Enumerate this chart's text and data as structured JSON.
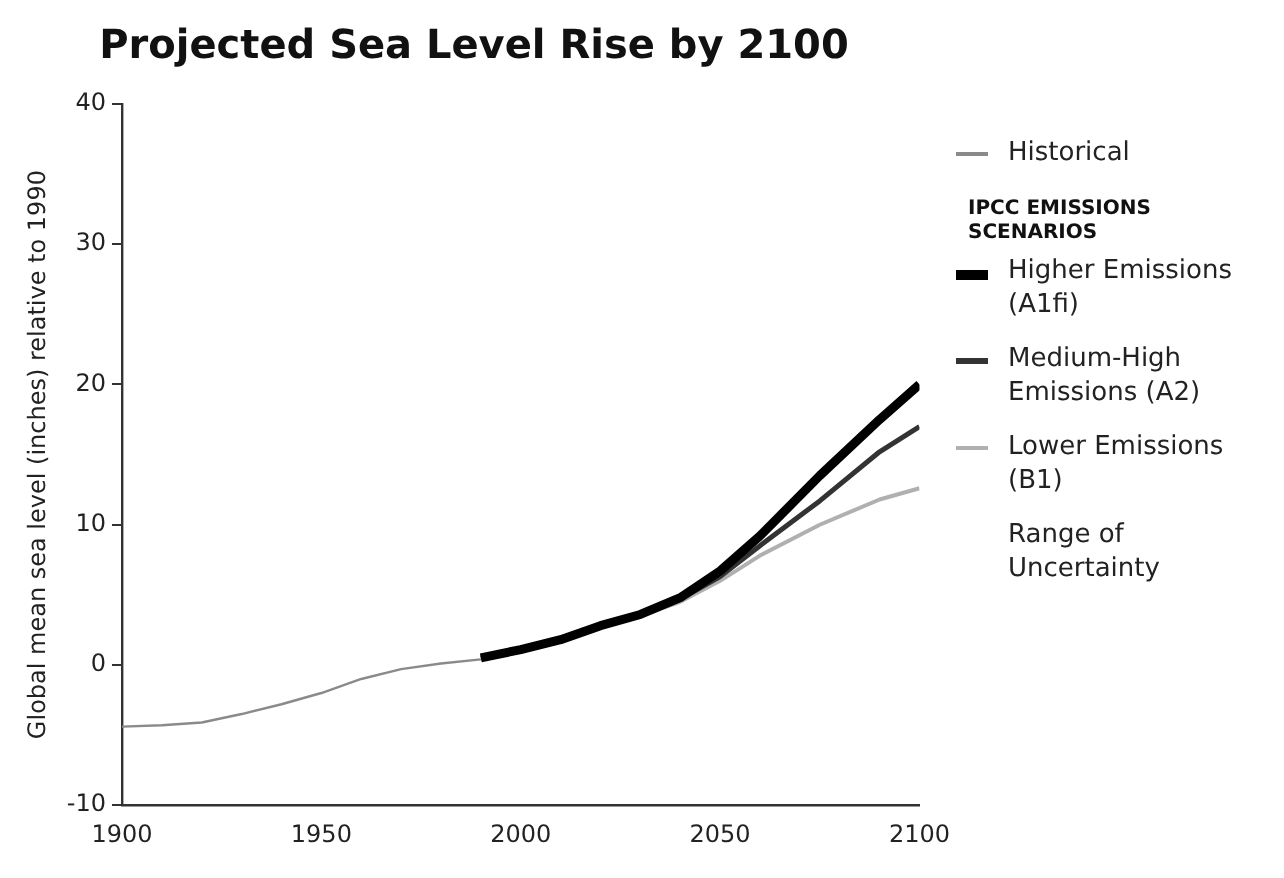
{
  "chart_data": {
    "type": "line",
    "title": "Projected Sea Level Rise by 2100",
    "ylabel": "Global mean sea level (inches) relative to 1990",
    "legend_title": "IPCC EMISSIONS SCENARIOS",
    "xlim": [
      1900,
      2100
    ],
    "xticks": [
      1900,
      1950,
      2000,
      2050,
      2100
    ],
    "ylim": [
      -10,
      40
    ],
    "yticks": [
      -10,
      0,
      10,
      20,
      30,
      40
    ],
    "grid": false,
    "legend": "right",
    "marker": "none",
    "annotations": [
      "Range of Uncertainty"
    ],
    "series": [
      {
        "name": "Historical",
        "color": "#8a8a8a",
        "x": [
          1900,
          1910,
          1920,
          1930,
          1940,
          1950,
          1960,
          1970,
          1980,
          1990
        ],
        "values": [
          -4.4,
          -4.3,
          -4.1,
          -3.5,
          -2.8,
          -2.0,
          -1.0,
          -0.3,
          0.1,
          0.4
        ]
      },
      {
        "name": "Higher Emissions (A1fi)",
        "color": "#000000",
        "x": [
          1990,
          2000,
          2010,
          2020,
          2030,
          2040,
          2050,
          2060,
          2075,
          2090,
          2100
        ],
        "values": [
          0.5,
          1.1,
          1.8,
          2.8,
          3.6,
          4.8,
          6.7,
          9.2,
          13.5,
          17.5,
          20
        ]
      },
      {
        "name": "Medium-High Emissions (A2)",
        "color": "#333333",
        "x": [
          1990,
          2000,
          2010,
          2020,
          2030,
          2040,
          2050,
          2060,
          2075,
          2090,
          2100
        ],
        "values": [
          0.5,
          1.1,
          1.8,
          2.8,
          3.6,
          4.7,
          6.3,
          8.5,
          11.7,
          15.2,
          17
        ]
      },
      {
        "name": "Lower Emissions (B1)",
        "color": "#b0b0b0",
        "x": [
          1990,
          2000,
          2010,
          2020,
          2030,
          2040,
          2050,
          2060,
          2075,
          2090,
          2100
        ],
        "values": [
          0.5,
          1.1,
          1.8,
          2.7,
          3.5,
          4.5,
          6.0,
          7.8,
          10.0,
          11.8,
          12.6
        ]
      }
    ]
  }
}
